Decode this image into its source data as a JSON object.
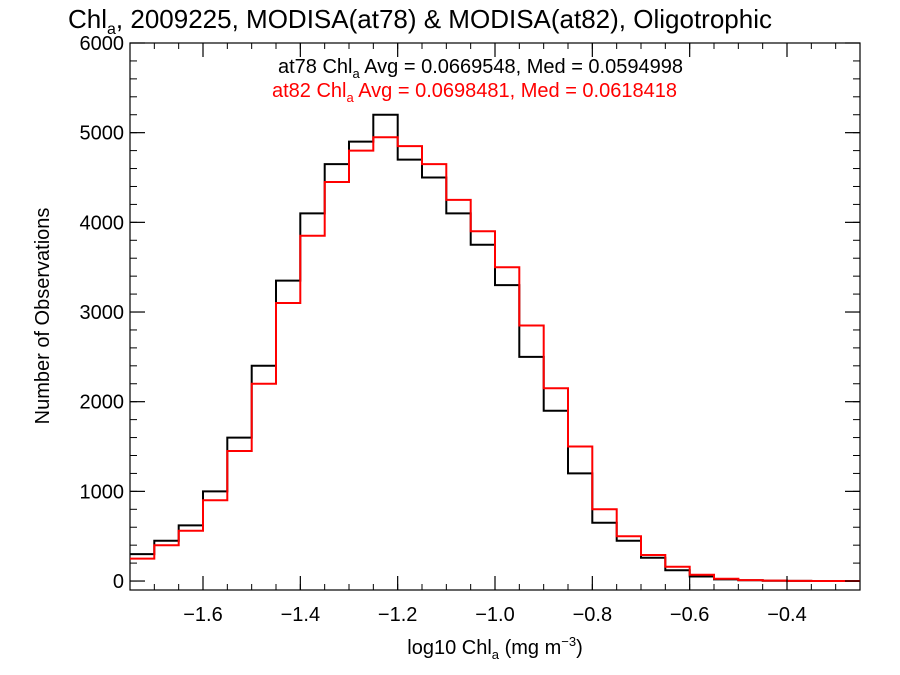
{
  "chart_data": {
    "type": "line",
    "step": true,
    "title": {
      "prefix": "Chl",
      "sub": "a",
      "rest": ", 2009225, MODISA(at78) & MODISA(at82), Oligotrophic"
    },
    "xlabel": {
      "prefix": "log10 Chl",
      "sub": "a",
      "mid": " (mg m",
      "sup": "−3",
      "end": ")"
    },
    "ylabel": "Number of Observations",
    "xlim": [
      -1.75,
      -0.25
    ],
    "ylim": [
      -100,
      6000
    ],
    "xticks": [
      -1.6,
      -1.4,
      -1.2,
      -1.0,
      -0.8,
      -0.6,
      -0.4
    ],
    "xtick_labels": [
      "−1.6",
      "−1.4",
      "−1.2",
      "−1.0",
      "−0.8",
      "−0.6",
      "−0.4"
    ],
    "yticks": [
      0,
      1000,
      2000,
      3000,
      4000,
      5000,
      6000
    ],
    "ytick_labels": [
      "0",
      "1000",
      "2000",
      "3000",
      "4000",
      "5000",
      "6000"
    ],
    "grid": false,
    "legend_placement": "top-center",
    "legend": [
      {
        "prefix": "at78 Chl",
        "sub": "a",
        "rest": " Avg = 0.0669548, Med = 0.0594998",
        "color": "#000000"
      },
      {
        "prefix": "at82 Chl",
        "sub": "a",
        "rest": " Avg = 0.0698481, Med = 0.0618418",
        "color": "#ff0000"
      }
    ],
    "x": [
      -1.75,
      -1.7,
      -1.65,
      -1.6,
      -1.55,
      -1.5,
      -1.45,
      -1.4,
      -1.35,
      -1.3,
      -1.25,
      -1.2,
      -1.15,
      -1.1,
      -1.05,
      -1.0,
      -0.95,
      -0.9,
      -0.85,
      -0.8,
      -0.75,
      -0.7,
      -0.65,
      -0.6,
      -0.55,
      -0.5,
      -0.45,
      -0.4,
      -0.35,
      -0.3,
      -0.25
    ],
    "series": [
      {
        "color": "#000000",
        "values": [
          300,
          450,
          620,
          1000,
          1600,
          2400,
          3350,
          4100,
          4650,
          4900,
          5200,
          4700,
          4500,
          4100,
          3750,
          3300,
          2500,
          1900,
          1200,
          650,
          450,
          260,
          120,
          50,
          18,
          8,
          4,
          2,
          0,
          0,
          0
        ]
      },
      {
        "color": "#ff0000",
        "values": [
          250,
          400,
          560,
          900,
          1450,
          2200,
          3100,
          3850,
          4450,
          4800,
          4950,
          4850,
          4650,
          4250,
          3900,
          3500,
          2850,
          2150,
          1500,
          800,
          500,
          290,
          160,
          70,
          25,
          10,
          5,
          2,
          0,
          0,
          0
        ]
      }
    ]
  }
}
